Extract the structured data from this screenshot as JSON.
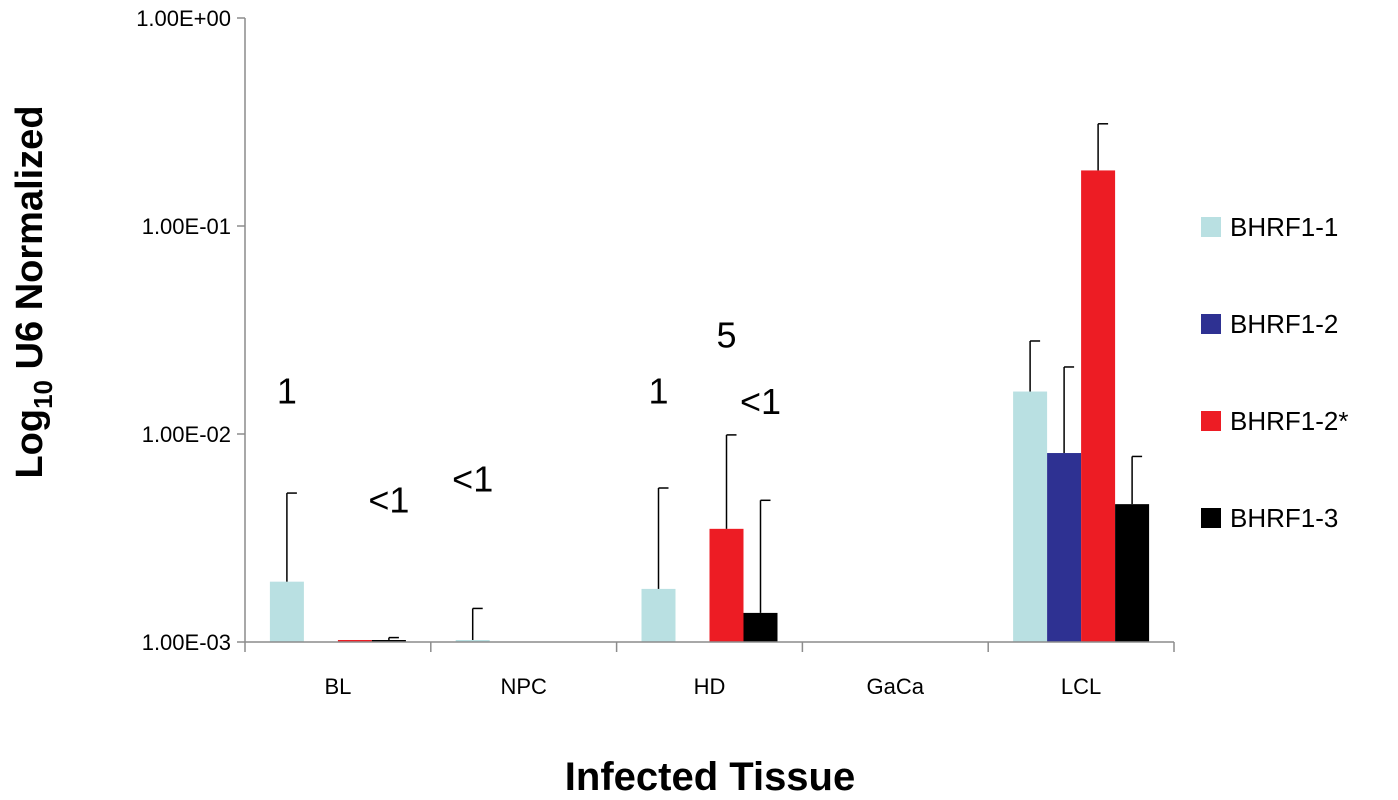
{
  "chart_data": {
    "type": "bar",
    "yscale": "log",
    "ylim": [
      0.001,
      1
    ],
    "yticks": [
      "1.00E-03",
      "1.00E-02",
      "1.00E-01",
      "1.00E+00"
    ],
    "ytick_values": [
      0.001,
      0.01,
      0.1,
      1
    ],
    "ylabel_main": "Log",
    "ylabel_sub": "10",
    "ylabel_rest": " U6 Normalized",
    "xlabel": "Infected Tissue",
    "categories": [
      "BL",
      "NPC",
      "HD",
      "GaCa",
      "LCL"
    ],
    "legend_position": "right",
    "series": [
      {
        "name": "BHRF1-1",
        "color": "#b9e0e2",
        "values": [
          0.00195,
          0.001,
          0.0018,
          null,
          0.016
        ],
        "errors": [
          0.0052,
          0.00145,
          0.0055,
          null,
          0.028
        ]
      },
      {
        "name": "BHRF1-2",
        "color": "#2e3192",
        "values": [
          null,
          null,
          null,
          null,
          0.0081
        ],
        "errors": [
          null,
          null,
          null,
          null,
          0.021
        ]
      },
      {
        "name": "BHRF1-2*",
        "color": "#ed1c24",
        "values": [
          0.001,
          null,
          0.0035,
          null,
          0.185
        ],
        "errors": [
          null,
          null,
          0.0099,
          null,
          0.31
        ]
      },
      {
        "name": "BHRF1-3",
        "color": "#000000",
        "values": [
          0.001,
          null,
          0.00138,
          null,
          0.0046
        ],
        "errors": [
          0.00105,
          null,
          0.0048,
          null,
          0.0078
        ]
      }
    ],
    "annotations": [
      {
        "text": "1",
        "category": 0,
        "series": 0,
        "y": 0.014
      },
      {
        "text": "<1",
        "category": 0,
        "series": 3,
        "y": 0.0042
      },
      {
        "text": "<1",
        "category": 1,
        "series": 0,
        "y": 0.0053
      },
      {
        "text": "1",
        "category": 2,
        "series": 0,
        "y": 0.014
      },
      {
        "text": "5",
        "category": 2,
        "series": 2,
        "y": 0.026
      },
      {
        "text": "<1",
        "category": 2,
        "series": 3,
        "y": 0.0125
      }
    ]
  }
}
